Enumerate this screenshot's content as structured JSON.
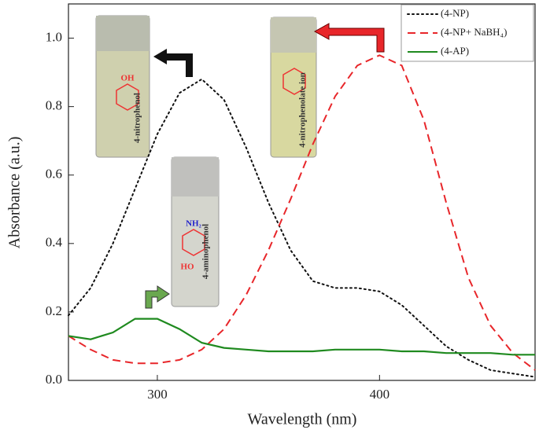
{
  "chart_data": {
    "type": "line",
    "xlabel": "Wavelength (nm)",
    "ylabel": "Absorbance (a.u.)",
    "xlim": [
      260,
      470
    ],
    "ylim": [
      0,
      1.1
    ],
    "xticks": [
      300,
      400
    ],
    "yticks": [
      {
        "value": 0,
        "label": "0.0"
      },
      0.2,
      0.4,
      0.6,
      0.8,
      {
        "value": 1,
        "label": "1.0"
      }
    ],
    "legend": "upper right",
    "x": [
      260,
      270,
      280,
      290,
      300,
      310,
      320,
      330,
      340,
      350,
      360,
      370,
      380,
      390,
      400,
      410,
      420,
      430,
      440,
      450,
      460,
      470
    ],
    "series": [
      {
        "name": "(4-NP)",
        "color": "#111111",
        "style": "dotted",
        "values": [
          0.19,
          0.27,
          0.4,
          0.56,
          0.72,
          0.84,
          0.88,
          0.82,
          0.68,
          0.52,
          0.38,
          0.29,
          0.27,
          0.27,
          0.26,
          0.22,
          0.16,
          0.1,
          0.06,
          0.03,
          0.02,
          0.01
        ]
      },
      {
        "name": "(4-NP+ NaBH₄)",
        "color": "#e8262a",
        "style": "dashed",
        "values": [
          0.13,
          0.09,
          0.06,
          0.05,
          0.05,
          0.06,
          0.09,
          0.15,
          0.25,
          0.38,
          0.53,
          0.69,
          0.83,
          0.92,
          0.95,
          0.92,
          0.76,
          0.52,
          0.3,
          0.16,
          0.08,
          0.03
        ]
      },
      {
        "name": "(4-AP)",
        "color": "#1f8a1f",
        "style": "solid",
        "values": [
          0.13,
          0.12,
          0.14,
          0.18,
          0.18,
          0.15,
          0.11,
          0.095,
          0.09,
          0.085,
          0.085,
          0.085,
          0.09,
          0.09,
          0.09,
          0.085,
          0.085,
          0.08,
          0.08,
          0.08,
          0.075,
          0.075
        ]
      }
    ],
    "annotations": [
      {
        "text": "4-nitrophenol"
      },
      {
        "text": "4-nitrophenolate ion"
      },
      {
        "text": "4-aminophenol"
      },
      {
        "text": "OH"
      },
      {
        "text": "NH₂"
      },
      {
        "text": "HO"
      }
    ]
  }
}
